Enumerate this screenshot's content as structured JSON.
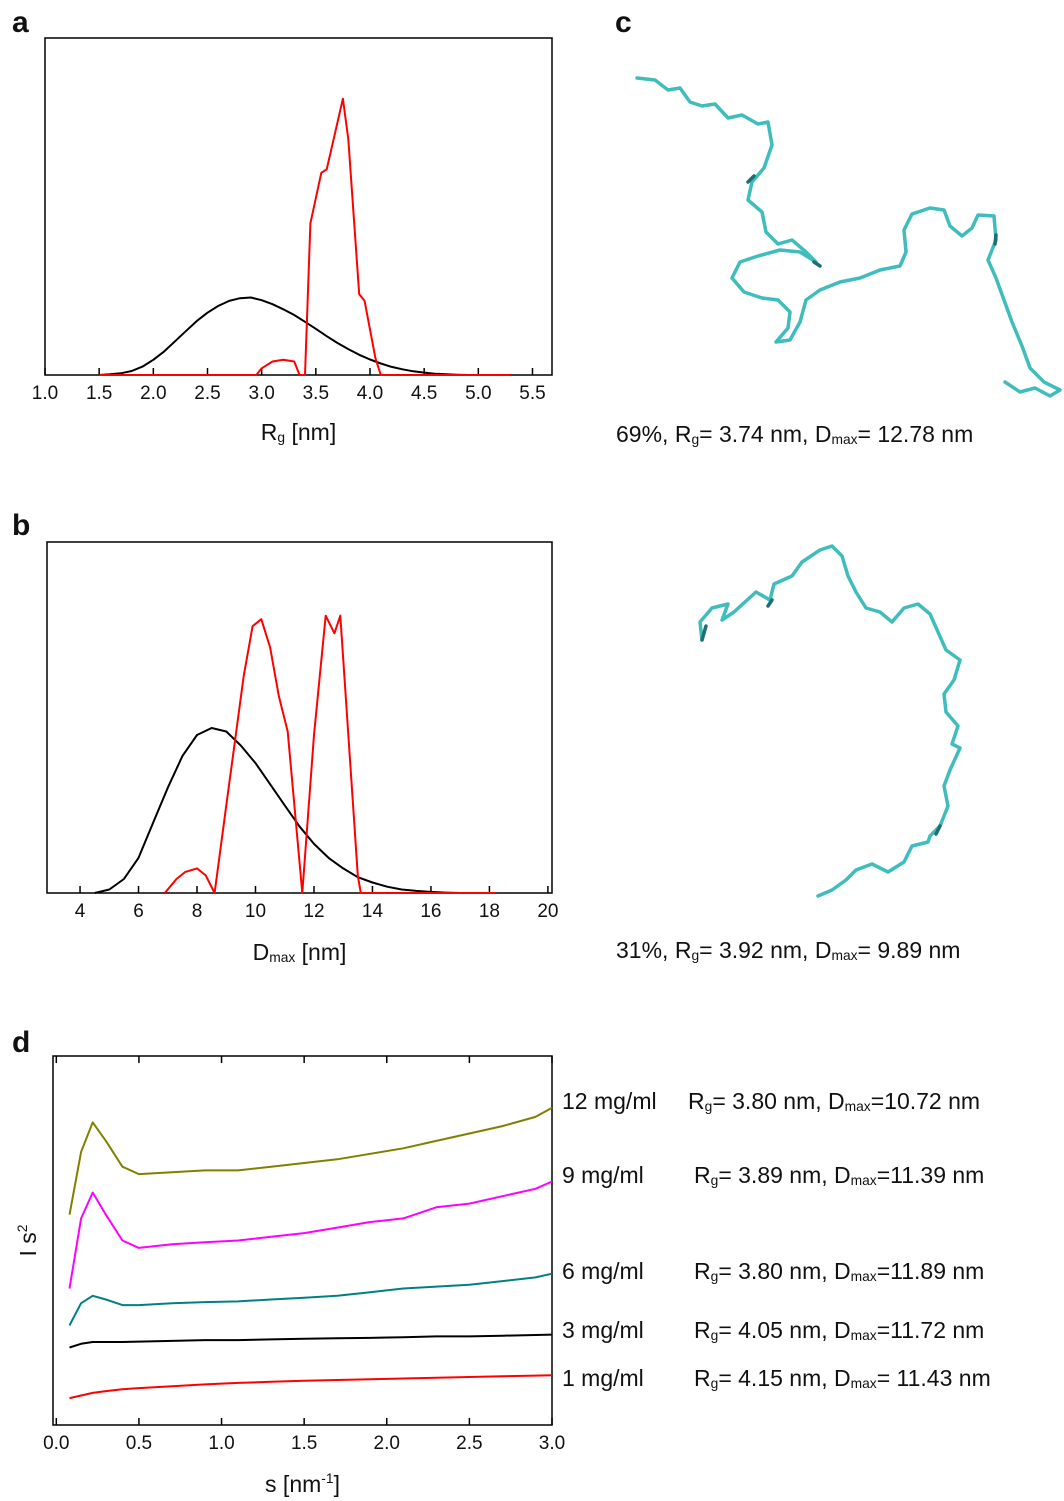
{
  "chart_data": [
    {
      "type": "line",
      "panel_label": "a",
      "xlabel_parts": [
        {
          "text": "R"
        },
        {
          "text": "g",
          "sub": true
        },
        {
          "text": " [nm]"
        }
      ],
      "xlim": [
        1.0,
        5.68
      ],
      "ylim": [
        0,
        1
      ],
      "xticks": [
        {
          "value": 1.0,
          "label": "1.0"
        },
        {
          "value": 1.5,
          "label": "1.5"
        },
        {
          "value": 2.0,
          "label": "2.0"
        },
        {
          "value": 2.5,
          "label": "2.5"
        },
        {
          "value": 3.0,
          "label": "3.0"
        },
        {
          "value": 3.5,
          "label": "3.5"
        },
        {
          "value": 4.0,
          "label": "4.0"
        },
        {
          "value": 4.5,
          "label": "4.5"
        },
        {
          "value": 5.0,
          "label": "5.0"
        },
        {
          "value": 5.5,
          "label": "5.5"
        }
      ],
      "series": [
        {
          "color": "#000000",
          "x": [
            1.5,
            1.6,
            1.7,
            1.8,
            1.9,
            2.0,
            2.1,
            2.2,
            2.3,
            2.4,
            2.5,
            2.6,
            2.7,
            2.8,
            2.9,
            3.0,
            3.1,
            3.2,
            3.3,
            3.4,
            3.5,
            3.6,
            3.7,
            3.8,
            3.9,
            4.0,
            4.1,
            4.2,
            4.3,
            4.4,
            4.5,
            4.6,
            4.7,
            4.8,
            4.9,
            5.0,
            5.1,
            5.2,
            5.3
          ],
          "values": [
            0,
            0.002,
            0.005,
            0.012,
            0.025,
            0.045,
            0.07,
            0.1,
            0.13,
            0.16,
            0.185,
            0.205,
            0.22,
            0.228,
            0.23,
            0.222,
            0.21,
            0.195,
            0.178,
            0.158,
            0.137,
            0.115,
            0.095,
            0.077,
            0.06,
            0.046,
            0.034,
            0.024,
            0.017,
            0.011,
            0.007,
            0.004,
            0.002,
            0.001,
            0,
            0,
            0,
            0,
            0
          ]
        },
        {
          "color": "#ff0000",
          "x": [
            1.5,
            2.95,
            3.0,
            3.1,
            3.2,
            3.3,
            3.35,
            3.4,
            3.45,
            3.55,
            3.6,
            3.7,
            3.75,
            3.8,
            3.9,
            3.95,
            4.05,
            4.1,
            5.3
          ],
          "values": [
            0,
            0,
            0.02,
            0.04,
            0.045,
            0.04,
            0,
            0,
            0.45,
            0.6,
            0.61,
            0.75,
            0.82,
            0.7,
            0.24,
            0.22,
            0.05,
            0,
            0
          ]
        }
      ]
    },
    {
      "type": "line",
      "panel_label": "b",
      "xlabel_parts": [
        {
          "text": "D"
        },
        {
          "text": "max",
          "sub": true
        },
        {
          "text": " [nm]"
        }
      ],
      "xlim": [
        2.87,
        20.14
      ],
      "ylim": [
        0,
        1
      ],
      "xticks": [
        4,
        6,
        8,
        10,
        12,
        14,
        16,
        18,
        20
      ],
      "series": [
        {
          "color": "#000000",
          "x": [
            4.5,
            5,
            5.5,
            6,
            6.5,
            7,
            7.5,
            8,
            8.5,
            9,
            9.5,
            10,
            10.5,
            11,
            11.5,
            12,
            12.5,
            13,
            13.5,
            14,
            14.5,
            15,
            15.5,
            16,
            16.5,
            17,
            17.5,
            18
          ],
          "values": [
            0,
            0.01,
            0.04,
            0.1,
            0.2,
            0.3,
            0.39,
            0.45,
            0.47,
            0.46,
            0.42,
            0.37,
            0.31,
            0.25,
            0.19,
            0.14,
            0.1,
            0.07,
            0.045,
            0.03,
            0.018,
            0.01,
            0.006,
            0.003,
            0.001,
            0,
            0,
            0
          ]
        },
        {
          "color": "#ff0000",
          "x": [
            6.9,
            7.3,
            7.6,
            8.0,
            8.3,
            8.6,
            9.0,
            9.6,
            9.9,
            10.2,
            10.5,
            10.8,
            11.1,
            11.6,
            12.0,
            12.4,
            12.7,
            12.9,
            13.5,
            13.6,
            18.2
          ],
          "values": [
            0,
            0.04,
            0.06,
            0.07,
            0.05,
            0,
            0.25,
            0.62,
            0.76,
            0.78,
            0.7,
            0.56,
            0.46,
            0,
            0.45,
            0.79,
            0.74,
            0.79,
            0.05,
            0,
            0
          ]
        }
      ]
    },
    {
      "type": "line",
      "panel_label": "d",
      "mirror_ticks": true,
      "xlabel_parts": [
        {
          "text": "s [nm"
        },
        {
          "text": "-1",
          "sup": true
        },
        {
          "text": "]"
        }
      ],
      "ylabel_parts": [
        {
          "text": "I s"
        },
        {
          "text": "2",
          "sup": true
        }
      ],
      "xlim": [
        -0.02,
        3.0
      ],
      "ylim": [
        0,
        1
      ],
      "xticks": [
        {
          "value": 0,
          "label": "0.0"
        },
        {
          "value": 0.5,
          "label": "0.5"
        },
        {
          "value": 1,
          "label": "1.0"
        },
        {
          "value": 1.5,
          "label": "1.5"
        },
        {
          "value": 2,
          "label": "2.0"
        },
        {
          "value": 2.5,
          "label": "2.5"
        },
        {
          "value": 3,
          "label": "3.0"
        }
      ],
      "x": [
        0.08,
        0.15,
        0.22,
        0.3,
        0.4,
        0.5,
        0.7,
        0.9,
        1.1,
        1.3,
        1.5,
        1.7,
        1.9,
        2.1,
        2.3,
        2.5,
        2.7,
        2.9,
        3.0
      ],
      "series": [
        {
          "name": "12 mg/ml",
          "color": "#808000",
          "annotation_parts": [
            {
              "text": "R"
            },
            {
              "text": "g",
              "sub": true
            },
            {
              "text": "= 3.80 nm, D"
            },
            {
              "text": "max",
              "sub": true
            },
            {
              "text": "=10.72 nm"
            }
          ],
          "values": [
            0.57,
            0.74,
            0.82,
            0.77,
            0.7,
            0.68,
            0.685,
            0.69,
            0.69,
            0.7,
            0.71,
            0.72,
            0.735,
            0.75,
            0.77,
            0.79,
            0.81,
            0.835,
            0.86
          ]
        },
        {
          "name": "9 mg/ml",
          "color": "#ff00ff",
          "annotation_parts": [
            {
              "text": "R"
            },
            {
              "text": "g",
              "sub": true
            },
            {
              "text": "= 3.89 nm, D"
            },
            {
              "text": "max",
              "sub": true
            },
            {
              "text": "=11.39 nm"
            }
          ],
          "values": [
            0.37,
            0.56,
            0.63,
            0.57,
            0.5,
            0.48,
            0.49,
            0.495,
            0.5,
            0.51,
            0.52,
            0.535,
            0.55,
            0.56,
            0.59,
            0.6,
            0.62,
            0.64,
            0.66
          ]
        },
        {
          "name": "6 mg/ml",
          "color": "#008080",
          "annotation_parts": [
            {
              "text": "R"
            },
            {
              "text": "g",
              "sub": true
            },
            {
              "text": "= 3.80 nm, D"
            },
            {
              "text": "max",
              "sub": true
            },
            {
              "text": "=11.89 nm"
            }
          ],
          "values": [
            0.27,
            0.33,
            0.35,
            0.34,
            0.325,
            0.325,
            0.33,
            0.333,
            0.335,
            0.34,
            0.345,
            0.35,
            0.36,
            0.37,
            0.375,
            0.38,
            0.39,
            0.4,
            0.41
          ]
        },
        {
          "name": "3 mg/ml",
          "color": "#000000",
          "annotation_parts": [
            {
              "text": "R"
            },
            {
              "text": "g",
              "sub": true
            },
            {
              "text": "= 4.05 nm, D"
            },
            {
              "text": "max",
              "sub": true
            },
            {
              "text": "=11.72 nm"
            }
          ],
          "values": [
            0.21,
            0.22,
            0.225,
            0.225,
            0.225,
            0.226,
            0.228,
            0.23,
            0.23,
            0.232,
            0.234,
            0.235,
            0.236,
            0.238,
            0.24,
            0.24,
            0.242,
            0.244,
            0.245
          ]
        },
        {
          "name": "1 mg/ml",
          "color": "#ff0000",
          "annotation_parts": [
            {
              "text": "R"
            },
            {
              "text": "g",
              "sub": true
            },
            {
              "text": "= 4.15 nm, D"
            },
            {
              "text": "max",
              "sub": true
            },
            {
              "text": "= 11.43 nm"
            }
          ],
          "values": [
            0.073,
            0.08,
            0.087,
            0.092,
            0.097,
            0.1,
            0.105,
            0.11,
            0.114,
            0.117,
            0.12,
            0.122,
            0.124,
            0.126,
            0.128,
            0.13,
            0.132,
            0.134,
            0.135
          ]
        }
      ]
    }
  ],
  "panel_c": {
    "label": "c",
    "models": [
      {
        "caption_parts": [
          {
            "text": "69%, R"
          },
          {
            "text": "g",
            "sub": true
          },
          {
            "text": "= 3.74 nm, D"
          },
          {
            "text": "max",
            "sub": true
          },
          {
            "text": "= 12.78 nm"
          }
        ]
      },
      {
        "caption_parts": [
          {
            "text": "31%, R"
          },
          {
            "text": "g",
            "sub": true
          },
          {
            "text": "= 3.92 nm, D"
          },
          {
            "text": "max",
            "sub": true
          },
          {
            "text": "= 9.89 nm"
          }
        ]
      }
    ]
  }
}
